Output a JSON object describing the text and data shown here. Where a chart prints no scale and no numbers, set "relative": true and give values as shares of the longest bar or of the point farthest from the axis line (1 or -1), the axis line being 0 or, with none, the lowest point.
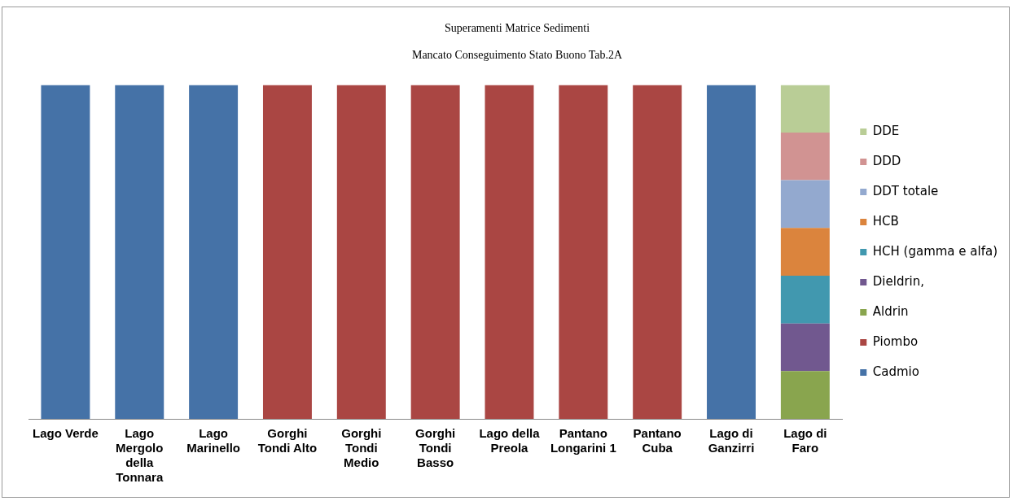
{
  "chart_data": {
    "type": "bar",
    "title": "Superamenti Matrice Sedimenti",
    "subtitle": "Mancato Conseguimento Stato Buono Tab.2A",
    "categories": [
      "Lago Verde",
      "Lago Mergolo della Tonnara",
      "Lago Marinello",
      "Gorghi Tondi Alto",
      "Gorghi Tondi Medio",
      "Gorghi Tondi Basso",
      "Lago della Preola",
      "Pantano Longarini 1",
      "Pantano Cuba",
      "Lago di Ganzirri",
      "Lago di Faro"
    ],
    "stacked": true,
    "relative": true,
    "legend": "right",
    "series": [
      {
        "name": "Cadmio",
        "color": "#4572a7",
        "values": [
          1,
          1,
          1,
          null,
          null,
          null,
          null,
          null,
          null,
          1,
          null
        ]
      },
      {
        "name": "Piombo",
        "color": "#aa4643",
        "values": [
          null,
          null,
          null,
          1,
          1,
          1,
          1,
          1,
          1,
          null,
          null
        ]
      },
      {
        "name": "Aldrin",
        "color": "#89a54e",
        "values": [
          null,
          null,
          null,
          null,
          null,
          null,
          null,
          null,
          null,
          null,
          0.143
        ]
      },
      {
        "name": "Dieldrin,",
        "color": "#71588f",
        "values": [
          null,
          null,
          null,
          null,
          null,
          null,
          null,
          null,
          null,
          null,
          0.143
        ]
      },
      {
        "name": "HCH (gamma e alfa)",
        "color": "#4198af",
        "values": [
          null,
          null,
          null,
          null,
          null,
          null,
          null,
          null,
          null,
          null,
          0.143
        ]
      },
      {
        "name": "HCB",
        "color": "#db843d",
        "values": [
          null,
          null,
          null,
          null,
          null,
          null,
          null,
          null,
          null,
          null,
          0.143
        ]
      },
      {
        "name": "DDT totale",
        "color": "#93a9cf",
        "values": [
          null,
          null,
          null,
          null,
          null,
          null,
          null,
          null,
          null,
          null,
          0.143
        ]
      },
      {
        "name": "DDD",
        "color": "#d19392",
        "values": [
          null,
          null,
          null,
          null,
          null,
          null,
          null,
          null,
          null,
          null,
          0.143
        ]
      },
      {
        "name": "DDE",
        "color": "#b9cd96",
        "values": [
          null,
          null,
          null,
          null,
          null,
          null,
          null,
          null,
          null,
          null,
          0.142
        ]
      }
    ]
  }
}
